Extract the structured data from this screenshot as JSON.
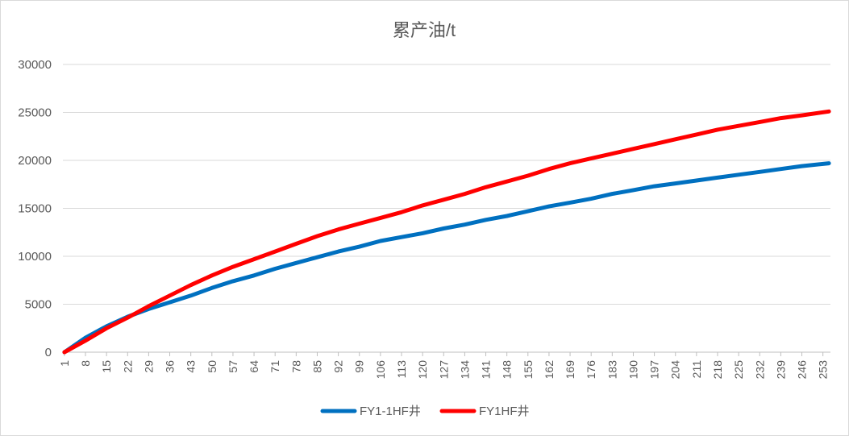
{
  "chart_data": {
    "type": "line",
    "title": "累产油/t",
    "xlabel": "",
    "ylabel": "",
    "ylim": [
      0,
      30000
    ],
    "yticks": [
      0,
      5000,
      10000,
      15000,
      20000,
      25000,
      30000
    ],
    "x_range": [
      1,
      255
    ],
    "xticks": [
      "1",
      "8",
      "15",
      "22",
      "29",
      "36",
      "43",
      "50",
      "57",
      "64",
      "71",
      "78",
      "85",
      "92",
      "99",
      "106",
      "113",
      "120",
      "127",
      "134",
      "141",
      "148",
      "155",
      "162",
      "169",
      "176",
      "183",
      "190",
      "197",
      "204",
      "211",
      "218",
      "225",
      "232",
      "239",
      "246",
      "253"
    ],
    "grid": true,
    "legend_position": "bottom",
    "series": [
      {
        "name": "FY1-1HF井",
        "color": "#0070c0",
        "x": [
          1,
          8,
          15,
          22,
          29,
          36,
          43,
          50,
          57,
          64,
          71,
          78,
          85,
          92,
          99,
          106,
          113,
          120,
          127,
          134,
          141,
          148,
          155,
          162,
          169,
          176,
          183,
          190,
          197,
          204,
          211,
          218,
          225,
          232,
          239,
          246,
          255
        ],
        "values": [
          0,
          1500,
          2700,
          3700,
          4500,
          5200,
          5900,
          6700,
          7400,
          8000,
          8700,
          9300,
          9900,
          10500,
          11000,
          11600,
          12000,
          12400,
          12900,
          13300,
          13800,
          14200,
          14700,
          15200,
          15600,
          16000,
          16500,
          16900,
          17300,
          17600,
          17900,
          18200,
          18500,
          18800,
          19100,
          19400,
          19700
        ]
      },
      {
        "name": "FY1HF井",
        "color": "#ff0000",
        "x": [
          1,
          8,
          15,
          22,
          29,
          36,
          43,
          50,
          57,
          64,
          71,
          78,
          85,
          92,
          99,
          106,
          113,
          120,
          127,
          134,
          141,
          148,
          155,
          162,
          169,
          176,
          183,
          190,
          197,
          204,
          211,
          218,
          225,
          232,
          239,
          246,
          255
        ],
        "values": [
          0,
          1200,
          2500,
          3600,
          4800,
          5900,
          7000,
          8000,
          8900,
          9700,
          10500,
          11300,
          12100,
          12800,
          13400,
          14000,
          14600,
          15300,
          15900,
          16500,
          17200,
          17800,
          18400,
          19100,
          19700,
          20200,
          20700,
          21200,
          21700,
          22200,
          22700,
          23200,
          23600,
          24000,
          24400,
          24700,
          25100
        ]
      }
    ]
  }
}
